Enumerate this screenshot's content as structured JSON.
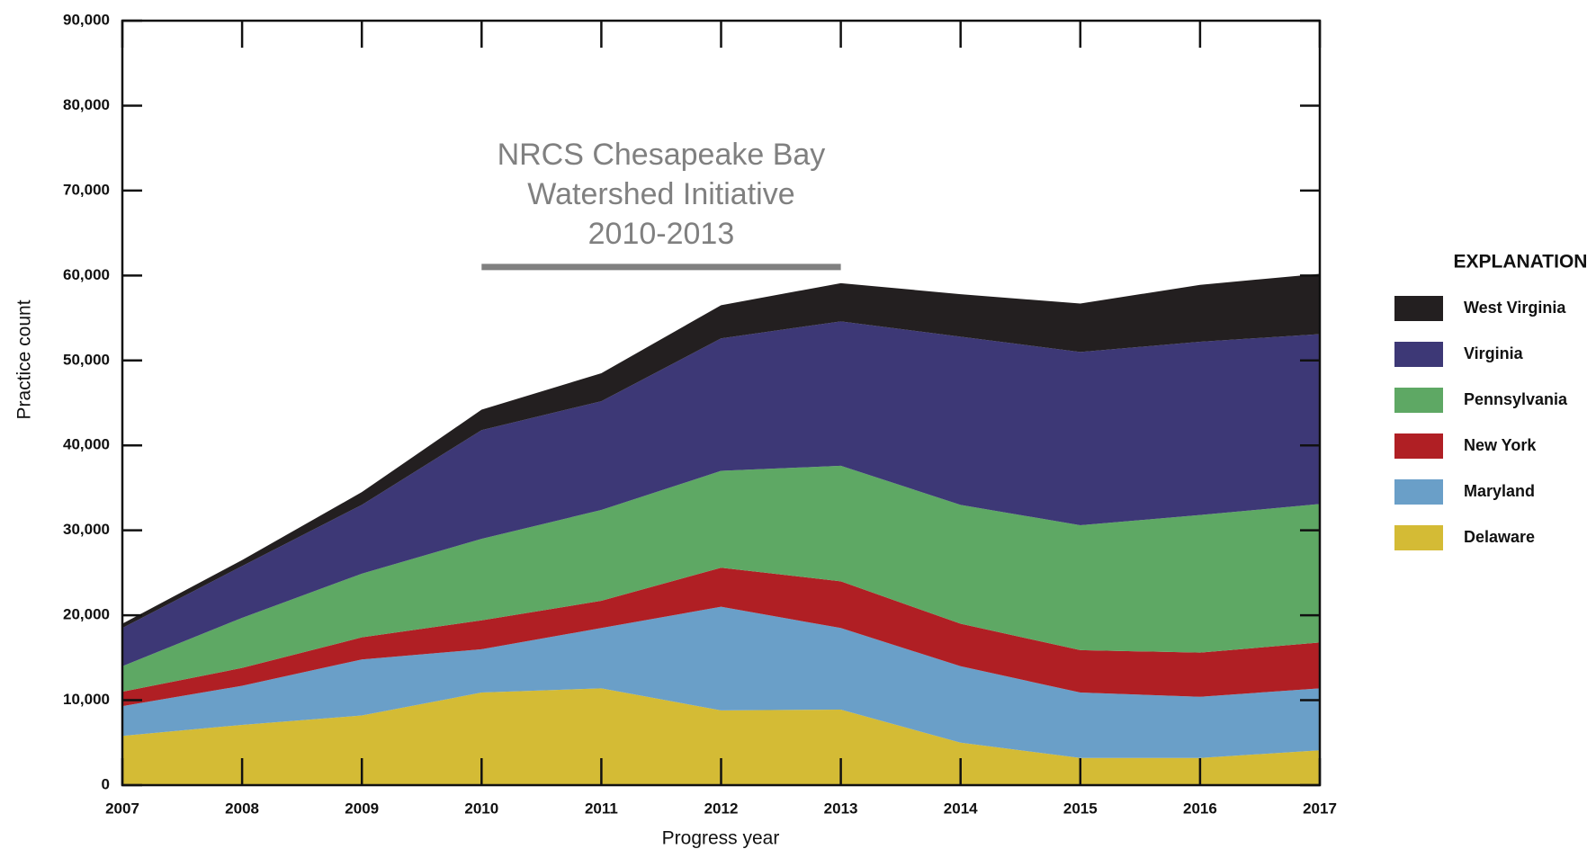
{
  "chart_data": {
    "type": "stacked_area",
    "x": [
      2007,
      2008,
      2009,
      2010,
      2011,
      2012,
      2013,
      2014,
      2015,
      2016,
      2017
    ],
    "xlim": [
      2007,
      2017
    ],
    "xticks": [
      2007,
      2008,
      2009,
      2010,
      2011,
      2012,
      2013,
      2014,
      2015,
      2016,
      2017
    ],
    "ylim": [
      0,
      90000
    ],
    "yticks": [
      0,
      {
        "value": 10000,
        "label": "10,000"
      },
      {
        "value": 20000,
        "label": "20,000"
      },
      {
        "value": 30000,
        "label": "30,000"
      },
      {
        "value": 40000,
        "label": "40,000"
      },
      {
        "value": 50000,
        "label": "50,000"
      },
      {
        "value": 60000,
        "label": "60,000"
      },
      {
        "value": 70000,
        "label": "70,000"
      },
      {
        "value": 80000,
        "label": "80,000"
      },
      {
        "value": 90000,
        "label": "90,000"
      }
    ],
    "x_label": "Progress year",
    "y_label": "Practice count",
    "legend_title": "EXPLANATION",
    "legend": "right",
    "series": [
      {
        "name": "Delaware",
        "color": "#d4bb35",
        "values": [
          5800,
          7100,
          8200,
          10900,
          11400,
          8800,
          8900,
          5000,
          3200,
          3200,
          4100
        ]
      },
      {
        "name": "Maryland",
        "color": "#6a9fc8",
        "values": [
          3500,
          4600,
          6600,
          5100,
          7100,
          12200,
          9600,
          9000,
          7700,
          7200,
          7300
        ]
      },
      {
        "name": "New York",
        "color": "#b01f24",
        "values": [
          1700,
          2100,
          2600,
          3400,
          3200,
          4600,
          5500,
          5000,
          5000,
          5200,
          5400
        ]
      },
      {
        "name": "Pennsylvania",
        "color": "#5ea864",
        "values": [
          3000,
          5900,
          7500,
          9600,
          10700,
          11400,
          13600,
          14000,
          14700,
          16200,
          16300
        ]
      },
      {
        "name": "Virginia",
        "color": "#3d3876",
        "values": [
          4500,
          6100,
          8100,
          12800,
          12800,
          15600,
          17000,
          19800,
          20400,
          20400,
          20000
        ]
      },
      {
        "name": "West Virginia",
        "color": "#231f20",
        "values": [
          500,
          700,
          1500,
          2400,
          3300,
          3900,
          4500,
          5000,
          5700,
          6700,
          7100
        ]
      }
    ],
    "annotation": {
      "lines": [
        "NRCS Chesapeake Bay",
        "Watershed Initiative",
        "2010-2013"
      ],
      "x_start": 2010,
      "x_end": 2013,
      "y": 61000,
      "color": "#808080"
    }
  }
}
